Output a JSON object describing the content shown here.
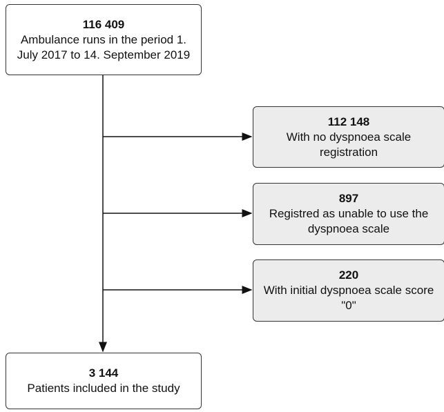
{
  "nodes": [
    {
      "count": "116 409",
      "label": "Ambulance runs in the period 1. July 2017 to 14. September 2019"
    },
    {
      "count": "112 148",
      "label": "With no dyspnoea scale registration"
    },
    {
      "count": "897",
      "label": "Registred as unable to use the dyspnoea scale"
    },
    {
      "count": "220",
      "label": "With initial dyspnoea scale score \"0\""
    },
    {
      "count": "3 144",
      "label": "Patients included in the study"
    }
  ]
}
